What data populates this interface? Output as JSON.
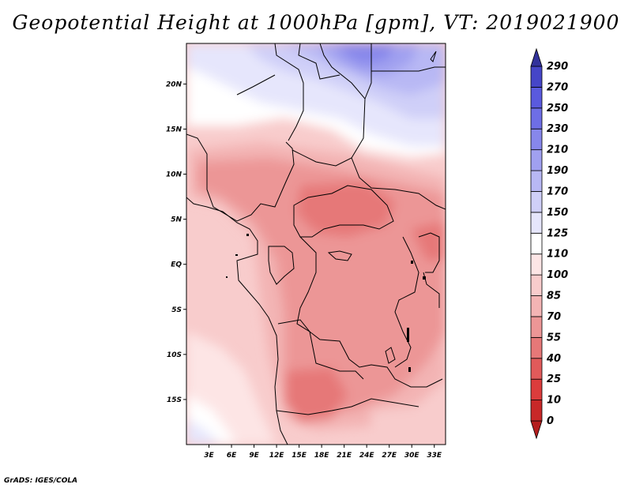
{
  "title": "Geopotential Height at 1000hPa [gpm], VT: 2019021900",
  "credit": "GrADS: IGES/COLA",
  "map": {
    "lon_range": [
      0,
      34.5
    ],
    "lat_range": [
      -20,
      24.5
    ],
    "lon_ticks": [
      {
        "value": 3,
        "label": "3E"
      },
      {
        "value": 6,
        "label": "6E"
      },
      {
        "value": 9,
        "label": "9E"
      },
      {
        "value": 12,
        "label": "12E"
      },
      {
        "value": 15,
        "label": "15E"
      },
      {
        "value": 18,
        "label": "18E"
      },
      {
        "value": 21,
        "label": "21E"
      },
      {
        "value": 24,
        "label": "24E"
      },
      {
        "value": 27,
        "label": "27E"
      },
      {
        "value": 30,
        "label": "30E"
      },
      {
        "value": 33,
        "label": "33E"
      }
    ],
    "lat_ticks": [
      {
        "value": 20,
        "label": "20N"
      },
      {
        "value": 15,
        "label": "15N"
      },
      {
        "value": 10,
        "label": "10N"
      },
      {
        "value": 5,
        "label": "5N"
      },
      {
        "value": 0,
        "label": "EQ"
      },
      {
        "value": -5,
        "label": "5S"
      },
      {
        "value": -10,
        "label": "10S"
      },
      {
        "value": -15,
        "label": "15S"
      }
    ]
  },
  "colorbar": {
    "levels": [
      "0",
      "10",
      "25",
      "40",
      "55",
      "70",
      "85",
      "100",
      "110",
      "125",
      "150",
      "170",
      "190",
      "210",
      "230",
      "250",
      "270",
      "290"
    ],
    "colors": [
      "#b41e1e",
      "#c82828",
      "#dc3c3c",
      "#e15a5a",
      "#e67878",
      "#ec9696",
      "#f3b4b4",
      "#f8cccc",
      "#fde5e5",
      "#ffffff",
      "#e6e6fc",
      "#cfcff8",
      "#b8b8f4",
      "#a0a0f0",
      "#8787eb",
      "#6e6ee6",
      "#5a5ade",
      "#4646c8",
      "#32329b"
    ]
  }
}
